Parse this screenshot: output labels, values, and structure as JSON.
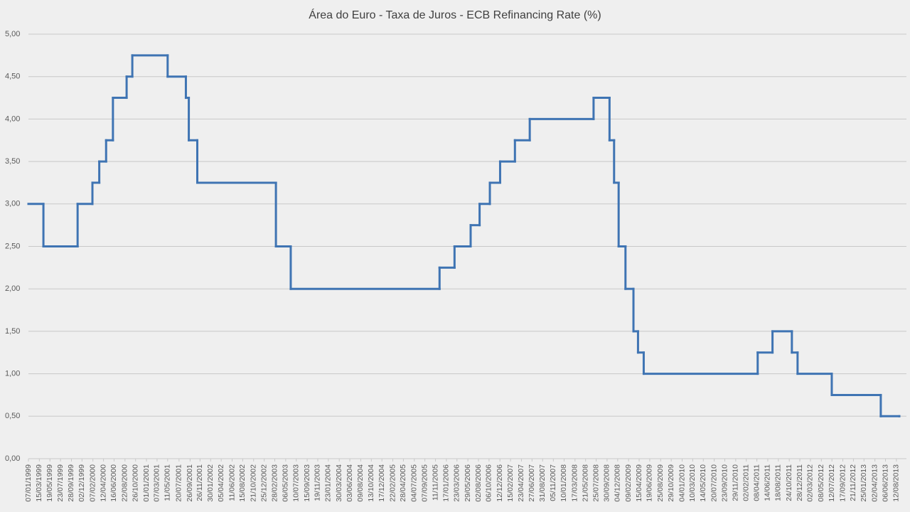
{
  "chart_data": {
    "type": "step-line",
    "title": "Área do Euro - Taxa de Juros - ECB Refinancing Rate (%)",
    "x": [
      "07/01/1999",
      "09/04/1999",
      "05/11/1999",
      "04/02/2000",
      "17/03/2000",
      "28/04/2000",
      "09/06/2000",
      "01/09/2000",
      "06/10/2000",
      "11/05/2001",
      "31/08/2001",
      "18/09/2001",
      "09/11/2001",
      "07/03/2003",
      "06/06/2003",
      "06/12/2005",
      "08/03/2006",
      "15/06/2006",
      "09/08/2006",
      "11/10/2006",
      "13/12/2006",
      "14/03/2007",
      "13/06/2007",
      "09/07/2008",
      "15/10/2008",
      "12/11/2008",
      "10/12/2008",
      "21/01/2009",
      "11/03/2009",
      "08/04/2009",
      "13/05/2009",
      "13/04/2011",
      "13/07/2011",
      "09/11/2011",
      "14/12/2011",
      "11/07/2012",
      "08/05/2013",
      "30/08/2013"
    ],
    "series": [
      {
        "name": "ECB Refinancing Rate",
        "color": "#3f74b3",
        "values": [
          3.0,
          2.5,
          3.0,
          3.25,
          3.5,
          3.75,
          4.25,
          4.5,
          4.75,
          4.5,
          4.25,
          3.75,
          3.25,
          2.5,
          2.0,
          2.25,
          2.5,
          2.75,
          3.0,
          3.25,
          3.5,
          3.75,
          4.0,
          4.25,
          3.75,
          3.25,
          2.5,
          2.0,
          1.5,
          1.25,
          1.0,
          1.25,
          1.5,
          1.25,
          1.0,
          0.75,
          0.5,
          0.5
        ]
      }
    ],
    "xlim": [
      "07/01/1999",
      "30/08/2013"
    ],
    "xticks": [
      "07/01/1999",
      "15/03/1999",
      "19/05/1999",
      "23/07/1999",
      "28/09/1999",
      "02/12/1999",
      "07/02/2000",
      "12/04/2000",
      "16/06/2000",
      "22/08/2000",
      "26/10/2000",
      "01/01/2001",
      "07/03/2001",
      "11/05/2001",
      "20/07/2001",
      "26/09/2001",
      "26/11/2001",
      "30/01/2002",
      "05/04/2002",
      "11/06/2002",
      "15/08/2002",
      "21/10/2002",
      "25/12/2002",
      "28/02/2003",
      "06/05/2003",
      "10/07/2003",
      "15/09/2003",
      "19/11/2003",
      "23/01/2004",
      "30/03/2004",
      "03/06/2004",
      "09/08/2004",
      "13/10/2004",
      "17/12/2004",
      "22/02/2005",
      "28/04/2005",
      "04/07/2005",
      "07/09/2005",
      "11/11/2005",
      "17/01/2006",
      "23/03/2006",
      "29/05/2006",
      "02/08/2006",
      "06/10/2006",
      "12/12/2006",
      "15/02/2007",
      "23/04/2007",
      "27/06/2007",
      "31/08/2007",
      "05/11/2007",
      "10/01/2008",
      "17/03/2008",
      "21/05/2008",
      "25/07/2008",
      "30/09/2008",
      "04/12/2008",
      "09/02/2009",
      "15/04/2009",
      "19/06/2009",
      "25/08/2009",
      "29/10/2009",
      "04/01/2010",
      "10/03/2010",
      "14/05/2010",
      "20/07/2010",
      "23/09/2010",
      "29/11/2010",
      "02/02/2011",
      "08/04/2011",
      "14/06/2011",
      "18/08/2011",
      "24/10/2011",
      "28/12/2011",
      "02/03/2012",
      "08/05/2012",
      "12/07/2012",
      "17/09/2012",
      "21/11/2012",
      "25/01/2013",
      "02/04/2013",
      "06/06/2013",
      "12/08/2013"
    ],
    "ylim": [
      0,
      5
    ],
    "yticks": [
      {
        "value": 0,
        "label": "0,00"
      },
      {
        "value": 0.5,
        "label": "0,50"
      },
      {
        "value": 1,
        "label": "1,00"
      },
      {
        "value": 1.5,
        "label": "1,50"
      },
      {
        "value": 2,
        "label": "2,00"
      },
      {
        "value": 2.5,
        "label": "2,50"
      },
      {
        "value": 3,
        "label": "3,00"
      },
      {
        "value": 3.5,
        "label": "3,50"
      },
      {
        "value": 4,
        "label": "4,00"
      },
      {
        "value": 4.5,
        "label": "4,50"
      },
      {
        "value": 5,
        "label": "5,00"
      }
    ],
    "grid": true
  }
}
